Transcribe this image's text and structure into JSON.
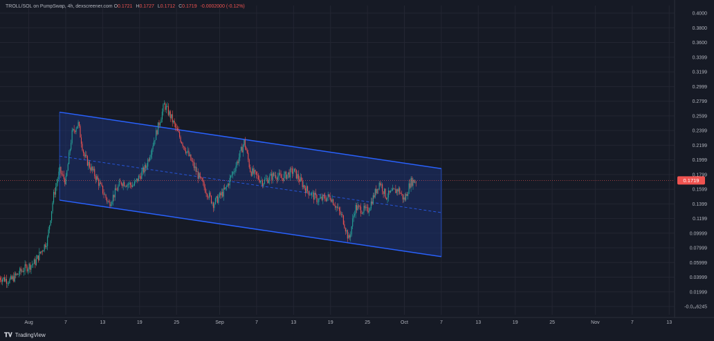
{
  "legend": {
    "symbol": "TROLL/SOL on PumpSwap, 4h, dexscreener.com",
    "o_key": "O",
    "o_val": "0.1721",
    "h_key": "H",
    "h_val": "0.1727",
    "l_key": "L",
    "l_val": "0.1712",
    "c_key": "C",
    "c_val": "0.1719",
    "change": "-0.0002000 (-0.12%)"
  },
  "branding": {
    "label": "TradingView"
  },
  "colors": {
    "background": "#161a25",
    "up": "#26a69a",
    "down": "#ef5350",
    "channel_line": "#2962ff",
    "channel_fill": "#1e3270",
    "price_line": "#ef5350"
  },
  "chart_data": {
    "type": "candlestick",
    "interval": "4h",
    "y_ticks": [
      "0.4000",
      "0.3800",
      "0.3600",
      "0.3399",
      "0.3199",
      "0.2999",
      "0.2799",
      "0.2599",
      "0.2399",
      "0.2199",
      "0.1999",
      "0.1799",
      "0.1599",
      "0.1399",
      "0.1199",
      "0.09999",
      "0.07999",
      "0.05999",
      "0.03999",
      "0.01999",
      "-0.0₁₆6245"
    ],
    "ylim": [
      0,
      0.4
    ],
    "x_ticks": [
      {
        "label": "Aug",
        "date": "2025-08-01"
      },
      {
        "label": "7",
        "date": "2025-08-07"
      },
      {
        "label": "13",
        "date": "2025-08-13"
      },
      {
        "label": "19",
        "date": "2025-08-19"
      },
      {
        "label": "25",
        "date": "2025-08-25"
      },
      {
        "label": "Sep",
        "date": "2025-09-01"
      },
      {
        "label": "7",
        "date": "2025-09-07"
      },
      {
        "label": "13",
        "date": "2025-09-13"
      },
      {
        "label": "19",
        "date": "2025-09-19"
      },
      {
        "label": "25",
        "date": "2025-09-25"
      },
      {
        "label": "Oct",
        "date": "2025-10-01"
      },
      {
        "label": "7",
        "date": "2025-10-07"
      },
      {
        "label": "13",
        "date": "2025-10-13"
      },
      {
        "label": "19",
        "date": "2025-10-19"
      },
      {
        "label": "25",
        "date": "2025-10-25"
      },
      {
        "label": "Nov",
        "date": "2025-11-01"
      },
      {
        "label": "7",
        "date": "2025-11-07"
      },
      {
        "label": "13",
        "date": "2025-11-13"
      }
    ],
    "last_price": {
      "value": 0.1719,
      "label": "0.1719"
    },
    "price_path": [
      {
        "date": "2025-07-27",
        "close": 0.04
      },
      {
        "date": "2025-07-29",
        "close": 0.035
      },
      {
        "date": "2025-07-31",
        "close": 0.05
      },
      {
        "date": "2025-08-02",
        "close": 0.06
      },
      {
        "date": "2025-08-04",
        "close": 0.09
      },
      {
        "date": "2025-08-05",
        "close": 0.15
      },
      {
        "date": "2025-08-06",
        "close": 0.185
      },
      {
        "date": "2025-08-07",
        "close": 0.17
      },
      {
        "date": "2025-08-08",
        "close": 0.235
      },
      {
        "date": "2025-08-09",
        "close": 0.25
      },
      {
        "date": "2025-08-10",
        "close": 0.205
      },
      {
        "date": "2025-08-12",
        "close": 0.175
      },
      {
        "date": "2025-08-14",
        "close": 0.14
      },
      {
        "date": "2025-08-16",
        "close": 0.17
      },
      {
        "date": "2025-08-18",
        "close": 0.165
      },
      {
        "date": "2025-08-20",
        "close": 0.19
      },
      {
        "date": "2025-08-22",
        "close": 0.245
      },
      {
        "date": "2025-08-23",
        "close": 0.275
      },
      {
        "date": "2025-08-24",
        "close": 0.26
      },
      {
        "date": "2025-08-25",
        "close": 0.24
      },
      {
        "date": "2025-08-27",
        "close": 0.205
      },
      {
        "date": "2025-08-29",
        "close": 0.17
      },
      {
        "date": "2025-08-31",
        "close": 0.14
      },
      {
        "date": "2025-09-02",
        "close": 0.16
      },
      {
        "date": "2025-09-04",
        "close": 0.2
      },
      {
        "date": "2025-09-05",
        "close": 0.225
      },
      {
        "date": "2025-09-06",
        "close": 0.185
      },
      {
        "date": "2025-09-08",
        "close": 0.17
      },
      {
        "date": "2025-09-10",
        "close": 0.18
      },
      {
        "date": "2025-09-11",
        "close": 0.175
      },
      {
        "date": "2025-09-13",
        "close": 0.185
      },
      {
        "date": "2025-09-15",
        "close": 0.16
      },
      {
        "date": "2025-09-17",
        "close": 0.145
      },
      {
        "date": "2025-09-19",
        "close": 0.15
      },
      {
        "date": "2025-09-21",
        "close": 0.12
      },
      {
        "date": "2025-09-22",
        "close": 0.09
      },
      {
        "date": "2025-09-23",
        "close": 0.135
      },
      {
        "date": "2025-09-25",
        "close": 0.13
      },
      {
        "date": "2025-09-27",
        "close": 0.17
      },
      {
        "date": "2025-09-28",
        "close": 0.15
      },
      {
        "date": "2025-09-30",
        "close": 0.16
      },
      {
        "date": "2025-10-01",
        "close": 0.145
      },
      {
        "date": "2025-10-02",
        "close": 0.17
      },
      {
        "date": "2025-10-03",
        "close": 0.1719
      }
    ],
    "channel": {
      "upper": [
        {
          "date": "2025-08-06",
          "value": 0.265
        },
        {
          "date": "2025-10-07",
          "value": 0.188
        }
      ],
      "lower": [
        {
          "date": "2025-08-06",
          "value": 0.145
        },
        {
          "date": "2025-10-07",
          "value": 0.068
        }
      ],
      "middle": [
        {
          "date": "2025-08-06",
          "value": 0.205
        },
        {
          "date": "2025-10-07",
          "value": 0.128
        }
      ]
    },
    "grid": true
  }
}
